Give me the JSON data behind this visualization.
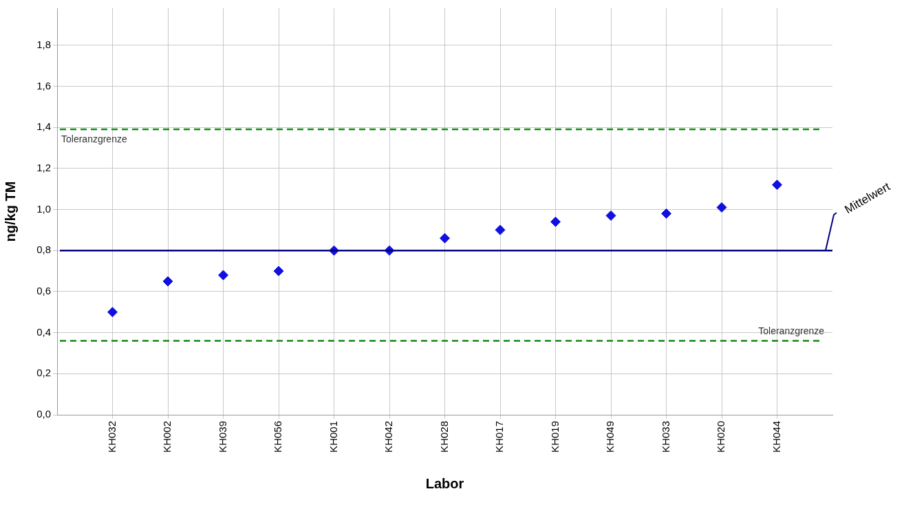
{
  "chart_data": {
    "type": "scatter",
    "xlabel": "Labor",
    "ylabel": "ng/kg TM",
    "categories": [
      "KH032",
      "KH002",
      "KH039",
      "KH056",
      "KH001",
      "KH042",
      "KH028",
      "KH017",
      "KH019",
      "KH049",
      "KH033",
      "KH020",
      "KH044"
    ],
    "values": [
      0.5,
      0.65,
      0.68,
      0.7,
      0.8,
      0.8,
      0.86,
      0.9,
      0.94,
      0.97,
      0.98,
      1.01,
      1.12
    ],
    "color": "#1010e0",
    "marker": "diamond",
    "grid": true,
    "legend": false,
    "ylim": [
      0,
      1.98
    ],
    "yticks": [
      {
        "value": 0,
        "label": "0,0"
      },
      {
        "value": 0.2,
        "label": "0,2"
      },
      {
        "value": 0.4,
        "label": "0,4"
      },
      {
        "value": 0.6,
        "label": "0,6"
      },
      {
        "value": 0.8,
        "label": "0,8"
      },
      {
        "value": 1.0,
        "label": "1,0"
      },
      {
        "value": 1.2,
        "label": "1,2"
      },
      {
        "value": 1.4,
        "label": "1,4"
      },
      {
        "value": 1.6,
        "label": "1,6"
      },
      {
        "value": 1.8,
        "label": "1,8"
      }
    ],
    "ref_lines": [
      {
        "axis": "y",
        "value": 1.39,
        "label": "Toleranzgrenze",
        "color": "#138a13",
        "line_style": "dashed"
      },
      {
        "axis": "y",
        "value": 0.36,
        "label": "Toleranzgrenze",
        "color": "#138a13",
        "line_style": "dashed"
      },
      {
        "axis": "y",
        "value": 0.8,
        "label": "Mittelwert",
        "color": "#000080",
        "line_style": "solid"
      }
    ]
  }
}
